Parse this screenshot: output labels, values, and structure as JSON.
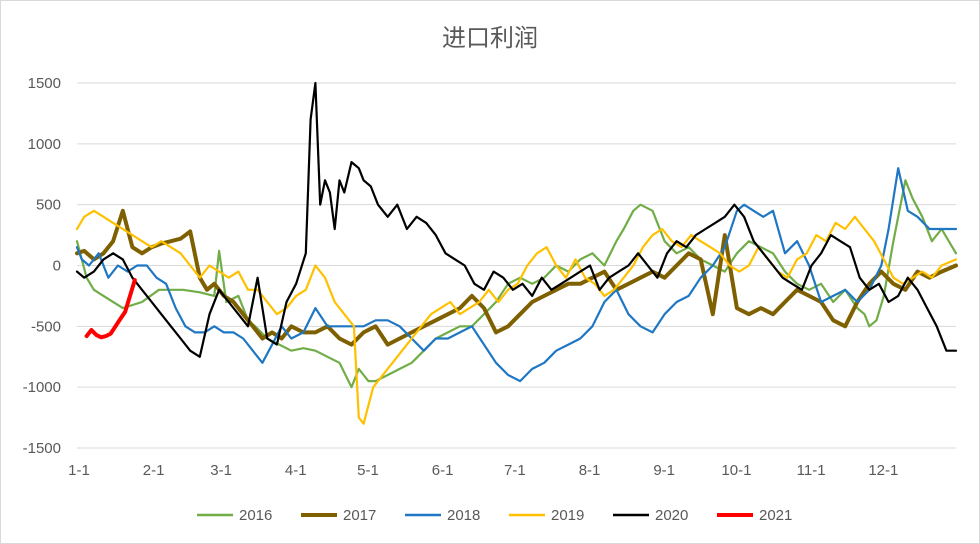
{
  "chart_data": {
    "type": "line",
    "title": "进口利润",
    "xlabel": "",
    "ylabel": "",
    "ylim": [
      -1500,
      1500
    ],
    "y_ticks": [
      1500,
      1000,
      500,
      0,
      -500,
      -1000,
      -1500
    ],
    "y_tick_labels": [
      "1500",
      "1000",
      "500",
      "0",
      "-500",
      "-1000",
      "-1500"
    ],
    "x_ticks": [
      1,
      32,
      60,
      91,
      121,
      152,
      182,
      213,
      244,
      274,
      305,
      335
    ],
    "x_tick_labels": [
      "1-1",
      "2-1",
      "3-1",
      "4-1",
      "5-1",
      "6-1",
      "7-1",
      "8-1",
      "9-1",
      "10-1",
      "11-1",
      "12-1"
    ],
    "xlim": [
      1,
      366
    ],
    "grid": true,
    "legend_position": "bottom",
    "series": [
      {
        "name": "2016",
        "color": "#70ad47",
        "x": [
          1,
          5,
          8,
          12,
          20,
          28,
          35,
          45,
          52,
          58,
          60,
          63,
          68,
          72,
          75,
          80,
          85,
          90,
          95,
          100,
          105,
          110,
          115,
          118,
          120,
          122,
          125,
          130,
          135,
          140,
          145,
          150,
          155,
          160,
          165,
          170,
          175,
          180,
          185,
          190,
          195,
          200,
          205,
          210,
          215,
          220,
          225,
          228,
          232,
          235,
          240,
          245,
          250,
          255,
          260,
          265,
          270,
          275,
          280,
          285,
          290,
          295,
          300,
          305,
          310,
          315,
          320,
          325,
          328,
          330,
          333,
          336,
          340,
          345,
          348,
          352,
          356,
          360,
          366
        ],
        "y": [
          200,
          -100,
          -200,
          -250,
          -350,
          -300,
          -200,
          -200,
          -220,
          -250,
          120,
          -300,
          -250,
          -450,
          -500,
          -600,
          -650,
          -700,
          -680,
          -700,
          -750,
          -800,
          -1000,
          -850,
          -900,
          -950,
          -950,
          -900,
          -850,
          -800,
          -700,
          -600,
          -550,
          -500,
          -500,
          -400,
          -300,
          -150,
          -100,
          -150,
          -100,
          0,
          -50,
          50,
          100,
          0,
          200,
          300,
          450,
          500,
          450,
          200,
          100,
          150,
          50,
          0,
          -50,
          100,
          200,
          150,
          100,
          -50,
          -150,
          -200,
          -150,
          -300,
          -200,
          -350,
          -400,
          -500,
          -450,
          -250,
          200,
          700,
          550,
          400,
          200,
          300,
          100
        ]
      },
      {
        "name": "2017",
        "color": "#7f6000",
        "x": [
          1,
          4,
          8,
          12,
          16,
          20,
          24,
          28,
          32,
          36,
          40,
          44,
          46,
          48,
          52,
          55,
          58,
          62,
          66,
          70,
          74,
          78,
          82,
          86,
          90,
          95,
          100,
          105,
          110,
          115,
          120,
          125,
          130,
          135,
          140,
          145,
          150,
          155,
          160,
          165,
          170,
          175,
          180,
          185,
          190,
          195,
          200,
          205,
          210,
          215,
          220,
          225,
          230,
          235,
          240,
          245,
          250,
          255,
          260,
          265,
          270,
          275,
          280,
          285,
          290,
          295,
          300,
          305,
          310,
          315,
          320,
          325,
          330,
          335,
          340,
          345,
          350,
          355,
          360,
          366
        ],
        "y": [
          100,
          120,
          50,
          100,
          200,
          450,
          150,
          100,
          150,
          180,
          200,
          220,
          250,
          280,
          -100,
          -200,
          -150,
          -250,
          -300,
          -400,
          -500,
          -600,
          -550,
          -600,
          -500,
          -550,
          -550,
          -500,
          -600,
          -650,
          -550,
          -500,
          -650,
          -600,
          -550,
          -500,
          -450,
          -400,
          -350,
          -250,
          -350,
          -550,
          -500,
          -400,
          -300,
          -250,
          -200,
          -150,
          -150,
          -100,
          -50,
          -200,
          -150,
          -100,
          -50,
          -100,
          0,
          100,
          50,
          -400,
          250,
          -350,
          -400,
          -350,
          -400,
          -300,
          -200,
          -250,
          -300,
          -450,
          -500,
          -300,
          -150,
          -50,
          -150,
          -200,
          -50,
          -100,
          -50,
          0
        ]
      },
      {
        "name": "2018",
        "color": "#1f77c4",
        "x": [
          1,
          3,
          6,
          10,
          14,
          18,
          22,
          26,
          30,
          34,
          38,
          42,
          46,
          50,
          54,
          58,
          62,
          66,
          70,
          74,
          78,
          82,
          86,
          90,
          95,
          100,
          105,
          110,
          115,
          120,
          125,
          130,
          135,
          140,
          145,
          150,
          155,
          160,
          165,
          170,
          175,
          180,
          185,
          190,
          195,
          200,
          205,
          210,
          215,
          220,
          225,
          230,
          235,
          240,
          245,
          250,
          255,
          260,
          265,
          270,
          275,
          278,
          282,
          286,
          290,
          295,
          300,
          305,
          310,
          315,
          320,
          325,
          330,
          335,
          338,
          342,
          346,
          350,
          355,
          360,
          366
        ],
        "y": [
          150,
          50,
          0,
          100,
          -100,
          0,
          -50,
          0,
          0,
          -100,
          -150,
          -350,
          -500,
          -550,
          -550,
          -500,
          -550,
          -550,
          -600,
          -700,
          -800,
          -650,
          -500,
          -600,
          -550,
          -350,
          -500,
          -500,
          -500,
          -500,
          -450,
          -450,
          -500,
          -600,
          -700,
          -600,
          -600,
          -550,
          -500,
          -650,
          -800,
          -900,
          -950,
          -850,
          -800,
          -700,
          -650,
          -600,
          -500,
          -300,
          -200,
          -400,
          -500,
          -550,
          -400,
          -300,
          -250,
          -100,
          0,
          150,
          450,
          500,
          450,
          400,
          450,
          100,
          200,
          0,
          -300,
          -250,
          -200,
          -300,
          -200,
          0,
          300,
          800,
          450,
          400,
          300,
          300,
          300
        ]
      },
      {
        "name": "2019",
        "color": "#ffc000",
        "x": [
          1,
          4,
          8,
          12,
          16,
          20,
          24,
          28,
          32,
          36,
          40,
          44,
          48,
          52,
          56,
          60,
          64,
          68,
          72,
          76,
          80,
          84,
          88,
          92,
          96,
          100,
          104,
          108,
          112,
          116,
          118,
          120,
          124,
          128,
          132,
          136,
          140,
          144,
          148,
          152,
          156,
          160,
          164,
          168,
          172,
          176,
          180,
          184,
          188,
          192,
          196,
          200,
          204,
          208,
          212,
          216,
          220,
          224,
          228,
          232,
          236,
          240,
          244,
          248,
          252,
          256,
          260,
          264,
          268,
          272,
          276,
          280,
          284,
          288,
          292,
          296,
          300,
          304,
          308,
          312,
          316,
          320,
          324,
          328,
          332,
          336,
          340,
          344,
          348,
          352,
          356,
          360,
          366
        ],
        "y": [
          300,
          400,
          450,
          400,
          350,
          300,
          250,
          200,
          150,
          200,
          150,
          100,
          0,
          -100,
          0,
          -50,
          -100,
          -50,
          -200,
          -200,
          -300,
          -400,
          -350,
          -250,
          -200,
          0,
          -100,
          -300,
          -400,
          -500,
          -1250,
          -1300,
          -1000,
          -900,
          -800,
          -700,
          -600,
          -500,
          -400,
          -350,
          -300,
          -400,
          -350,
          -300,
          -200,
          -300,
          -200,
          -150,
          0,
          100,
          150,
          0,
          -100,
          50,
          -100,
          -150,
          -250,
          -200,
          -100,
          0,
          150,
          250,
          300,
          200,
          150,
          250,
          200,
          150,
          100,
          0,
          -50,
          0,
          150,
          50,
          -50,
          -100,
          50,
          100,
          250,
          200,
          350,
          300,
          400,
          300,
          200,
          50,
          -100,
          -150,
          -100,
          -50,
          -100,
          0,
          50
        ]
      },
      {
        "name": "2020",
        "color": "#000000",
        "x": [
          1,
          4,
          8,
          12,
          16,
          20,
          24,
          28,
          32,
          36,
          40,
          44,
          48,
          52,
          56,
          60,
          64,
          68,
          72,
          76,
          80,
          84,
          88,
          92,
          96,
          98,
          100,
          102,
          104,
          106,
          108,
          110,
          112,
          115,
          118,
          120,
          123,
          126,
          130,
          134,
          138,
          142,
          146,
          150,
          154,
          158,
          162,
          166,
          170,
          174,
          178,
          182,
          186,
          190,
          194,
          198,
          202,
          206,
          210,
          214,
          218,
          222,
          226,
          230,
          234,
          238,
          242,
          246,
          250,
          254,
          258,
          262,
          266,
          270,
          274,
          278,
          282,
          286,
          290,
          294,
          298,
          302,
          306,
          310,
          314,
          318,
          322,
          326,
          330,
          334,
          338,
          342,
          346,
          350,
          354,
          358,
          362,
          366
        ],
        "y": [
          -50,
          -100,
          -50,
          50,
          100,
          50,
          -100,
          -200,
          -300,
          -400,
          -500,
          -600,
          -700,
          -750,
          -400,
          -200,
          -300,
          -400,
          -500,
          -100,
          -600,
          -650,
          -300,
          -150,
          100,
          1200,
          1500,
          500,
          700,
          600,
          300,
          700,
          600,
          850,
          800,
          700,
          650,
          500,
          400,
          500,
          300,
          400,
          350,
          250,
          100,
          50,
          0,
          -150,
          -200,
          -50,
          -100,
          -200,
          -150,
          -250,
          -100,
          -200,
          -150,
          -100,
          -50,
          0,
          -200,
          -100,
          -50,
          0,
          100,
          0,
          -100,
          100,
          200,
          150,
          250,
          300,
          350,
          400,
          500,
          400,
          200,
          100,
          0,
          -100,
          -150,
          -200,
          0,
          100,
          250,
          200,
          150,
          -100,
          -200,
          -150,
          -300,
          -250,
          -100,
          -200,
          -350,
          -500,
          -700,
          -700
        ]
      },
      {
        "name": "2021",
        "color": "#ff0000",
        "x": [
          5,
          7,
          9,
          11,
          13,
          15,
          17,
          19,
          21,
          23,
          25
        ],
        "y": [
          -580,
          -530,
          -570,
          -590,
          -580,
          -560,
          -500,
          -440,
          -380,
          -250,
          -120
        ]
      }
    ]
  }
}
